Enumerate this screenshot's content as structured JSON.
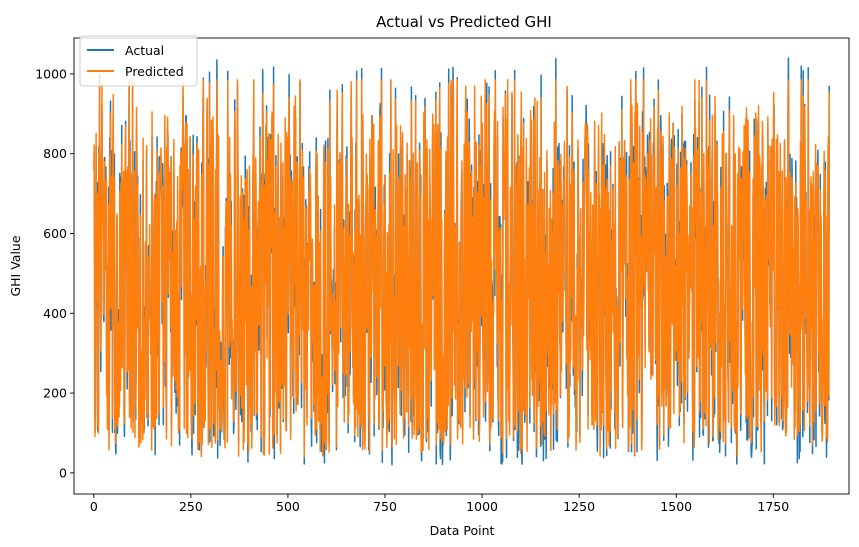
{
  "chart_data": {
    "type": "line",
    "title": "Actual vs Predicted GHI",
    "xlabel": "Data Point",
    "ylabel": "GHI Value",
    "xlim": [
      -51,
      1945
    ],
    "ylim": [
      -53,
      1090
    ],
    "x_ticks": [
      0,
      250,
      500,
      750,
      1000,
      1250,
      1500,
      1750
    ],
    "x_tick_labels": [
      "0",
      "250",
      "500",
      "750",
      "1000",
      "1250",
      "1500",
      "1750"
    ],
    "y_ticks": [
      0,
      200,
      400,
      600,
      800,
      1000
    ],
    "y_tick_labels": [
      "0",
      "200",
      "400",
      "600",
      "800",
      "1000"
    ],
    "grid": false,
    "legend_position": "upper-left",
    "n_points": 1895,
    "series": [
      {
        "name": "Actual",
        "color": "#1f77b4",
        "min": 0,
        "max": 1040,
        "first": 780,
        "last": 970
      },
      {
        "name": "Predicted",
        "color": "#ff7f0e",
        "min": -10,
        "max": 985,
        "first": 760,
        "last": 955
      }
    ],
    "legend": {
      "entries": [
        "Actual",
        "Predicted"
      ]
    }
  }
}
